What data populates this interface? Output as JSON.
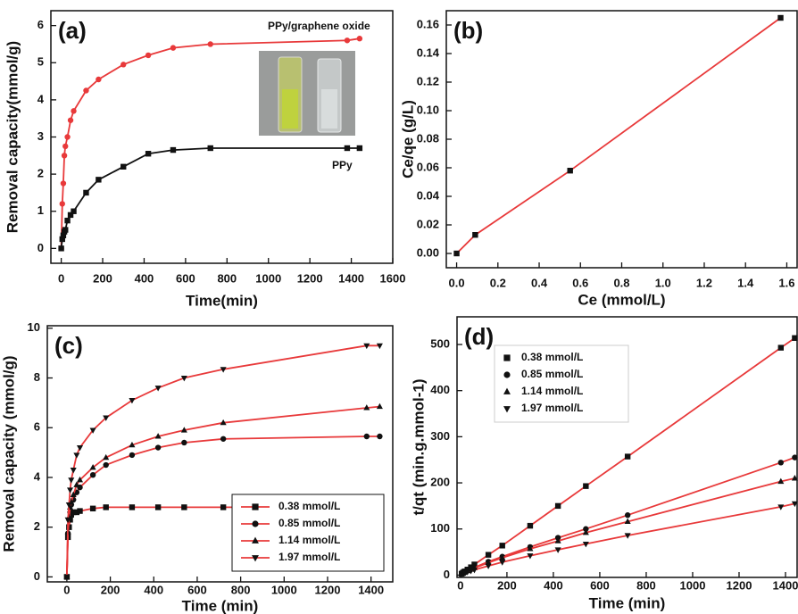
{
  "chart_data": [
    {
      "type": "line",
      "panel_label": "(a)",
      "xlabel": "Time(min)",
      "ylabel": "Removal capacity(mmol/g)",
      "x": [
        0,
        5,
        10,
        15,
        20,
        30,
        45,
        60,
        120,
        180,
        300,
        420,
        540,
        720,
        1380,
        1440
      ],
      "series": [
        {
          "name": "PPy/graphene oxide",
          "color": "#e8393a",
          "line_color": "#e8393a",
          "marker": "circle",
          "values": [
            0,
            1.2,
            1.75,
            2.5,
            2.75,
            3.0,
            3.45,
            3.7,
            4.25,
            4.55,
            4.95,
            5.2,
            5.4,
            5.5,
            5.6,
            5.65
          ]
        },
        {
          "name": "PPy",
          "color": "#111111",
          "line_color": "#111111",
          "marker": "square",
          "values": [
            0,
            0.25,
            0.35,
            0.45,
            0.5,
            0.75,
            0.9,
            1.0,
            1.5,
            1.85,
            2.2,
            2.55,
            2.65,
            2.7,
            2.7,
            2.7
          ]
        }
      ],
      "legend": "inline",
      "xlim": [
        -50,
        1600
      ],
      "xticks": [
        0,
        200,
        400,
        600,
        800,
        1000,
        1200,
        1400,
        1600
      ],
      "ylim": [
        -0.4,
        6.4
      ],
      "yticks": [
        0,
        1,
        2,
        3,
        4,
        5,
        6
      ]
    },
    {
      "type": "line",
      "panel_label": "(b)",
      "xlabel": "Ce (mmol/L)",
      "ylabel": "Ce/qe (g/L)",
      "x": [
        0,
        0.09,
        0.55,
        1.57
      ],
      "series": [
        {
          "name": null,
          "color": "#111111",
          "line_color": "#e8393a",
          "marker": "square",
          "values": [
            0,
            0.013,
            0.058,
            0.165
          ]
        }
      ],
      "legend": "none",
      "xlim": [
        -0.05,
        1.65
      ],
      "xticks": [
        {
          "value": 0,
          "label": "0.0"
        },
        0.2,
        0.4,
        0.6,
        0.8,
        {
          "value": 1,
          "label": "1.0"
        },
        1.2,
        1.4,
        1.6
      ],
      "ylim": [
        -0.01,
        0.17
      ],
      "yticks": [
        {
          "value": 0,
          "label": "0.00"
        },
        0.02,
        0.04,
        0.06,
        0.08,
        {
          "value": 0.1,
          "label": "0.10"
        },
        0.12,
        0.14,
        0.16
      ]
    },
    {
      "type": "line",
      "panel_label": "(c)",
      "xlabel": "Time (min)",
      "ylabel": "Removal capacity (mmol/g)",
      "x": [
        0,
        5,
        10,
        15,
        20,
        30,
        45,
        60,
        120,
        180,
        300,
        420,
        540,
        720,
        1380,
        1440
      ],
      "series": [
        {
          "name": "0.38 mmol/L",
          "color": "#111111",
          "line_color": "#e8393a",
          "marker": "square",
          "values": [
            0,
            1.6,
            2.0,
            2.3,
            2.5,
            2.6,
            2.6,
            2.65,
            2.75,
            2.8,
            2.8,
            2.8,
            2.8,
            2.8,
            2.8,
            2.8
          ]
        },
        {
          "name": "0.85 mmol/L",
          "color": "#111111",
          "line_color": "#e8393a",
          "marker": "circle",
          "values": [
            0,
            1.75,
            2.3,
            2.6,
            2.9,
            3.1,
            3.4,
            3.6,
            4.1,
            4.5,
            4.9,
            5.2,
            5.4,
            5.55,
            5.65,
            5.65
          ]
        },
        {
          "name": "1.14 mmol/L",
          "color": "#111111",
          "line_color": "#e8393a",
          "marker": "triangle-up",
          "values": [
            0,
            1.8,
            2.4,
            2.8,
            3.0,
            3.3,
            3.7,
            3.9,
            4.4,
            4.8,
            5.3,
            5.65,
            5.9,
            6.2,
            6.8,
            6.85
          ]
        },
        {
          "name": "1.97 mmol/L",
          "color": "#111111",
          "line_color": "#e8393a",
          "marker": "triangle-down",
          "values": [
            0,
            2.3,
            2.9,
            3.5,
            3.9,
            4.3,
            4.9,
            5.2,
            5.9,
            6.4,
            7.1,
            7.6,
            8.0,
            8.35,
            9.3,
            9.3
          ]
        }
      ],
      "legend": "lower right",
      "xlim": [
        -90,
        1500
      ],
      "xticks": [
        0,
        200,
        400,
        600,
        800,
        1000,
        1200,
        1400
      ],
      "ylim": [
        -0.2,
        10.1
      ],
      "yticks": [
        0,
        2,
        4,
        6,
        8,
        10
      ]
    },
    {
      "type": "line",
      "panel_label": "(d)",
      "xlabel": "Time (min)",
      "ylabel": "t/qt (min.g.mmol-1)",
      "x": [
        5,
        10,
        15,
        20,
        30,
        45,
        60,
        120,
        180,
        300,
        420,
        540,
        720,
        1380,
        1440
      ],
      "series": [
        {
          "name": "0.38 mmol/L",
          "color": "#111111",
          "line_color": "#e8393a",
          "marker": "square",
          "values": [
            3,
            5,
            7,
            8,
            12,
            17,
            23,
            44,
            64,
            107,
            150,
            193,
            257,
            493,
            514
          ]
        },
        {
          "name": "0.85 mmol/L",
          "color": "#111111",
          "line_color": "#e8393a",
          "marker": "circle",
          "values": [
            2.9,
            4.3,
            5.8,
            6.9,
            9.7,
            13.2,
            16.7,
            29,
            40,
            61,
            81,
            100,
            130,
            244,
            255
          ]
        },
        {
          "name": "1.14 mmol/L",
          "color": "#111111",
          "line_color": "#e8393a",
          "marker": "triangle-up",
          "values": [
            2.8,
            4.2,
            5.4,
            6.7,
            9.1,
            12.2,
            15.4,
            27,
            37.5,
            57,
            74,
            92,
            116,
            203,
            210
          ]
        },
        {
          "name": "1.97 mmol/L",
          "color": "#111111",
          "line_color": "#e8393a",
          "marker": "triangle-down",
          "values": [
            2.2,
            3.4,
            4.3,
            5.1,
            7,
            9.2,
            11.5,
            20,
            28,
            42,
            55,
            67.5,
            86,
            148,
            155
          ]
        }
      ],
      "legend": "upper left",
      "xlim": [
        -15,
        1450
      ],
      "xticks": [
        0,
        200,
        400,
        600,
        800,
        1000,
        1200,
        1400
      ],
      "ylim": [
        -5,
        560
      ],
      "yticks": [
        0,
        100,
        200,
        300,
        400,
        500
      ]
    }
  ]
}
